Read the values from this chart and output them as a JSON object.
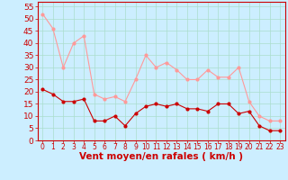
{
  "x": [
    0,
    1,
    2,
    3,
    4,
    5,
    6,
    7,
    8,
    9,
    10,
    11,
    12,
    13,
    14,
    15,
    16,
    17,
    18,
    19,
    20,
    21,
    22,
    23
  ],
  "wind_avg": [
    21,
    19,
    16,
    16,
    17,
    8,
    8,
    10,
    6,
    11,
    14,
    15,
    14,
    15,
    13,
    13,
    12,
    15,
    15,
    11,
    12,
    6,
    4,
    4
  ],
  "wind_gust": [
    52,
    46,
    30,
    40,
    43,
    19,
    17,
    18,
    16,
    25,
    35,
    30,
    32,
    29,
    25,
    25,
    29,
    26,
    26,
    30,
    16,
    10,
    8,
    8
  ],
  "bg_color": "#cceeff",
  "grid_color": "#aaddcc",
  "avg_color": "#cc0000",
  "gust_color": "#ff9999",
  "xlabel": "Vent moyen/en rafales ( km/h )",
  "xlabel_color": "#cc0000",
  "ylabel_values": [
    0,
    5,
    10,
    15,
    20,
    25,
    30,
    35,
    40,
    45,
    50,
    55
  ],
  "ylim": [
    0,
    57
  ],
  "xlim": [
    -0.5,
    23.5
  ],
  "tick_color": "#cc0000",
  "axes_color": "#cc0000",
  "ytick_fontsize": 6.5,
  "xtick_fontsize": 5.5,
  "xlabel_fontsize": 7.5
}
